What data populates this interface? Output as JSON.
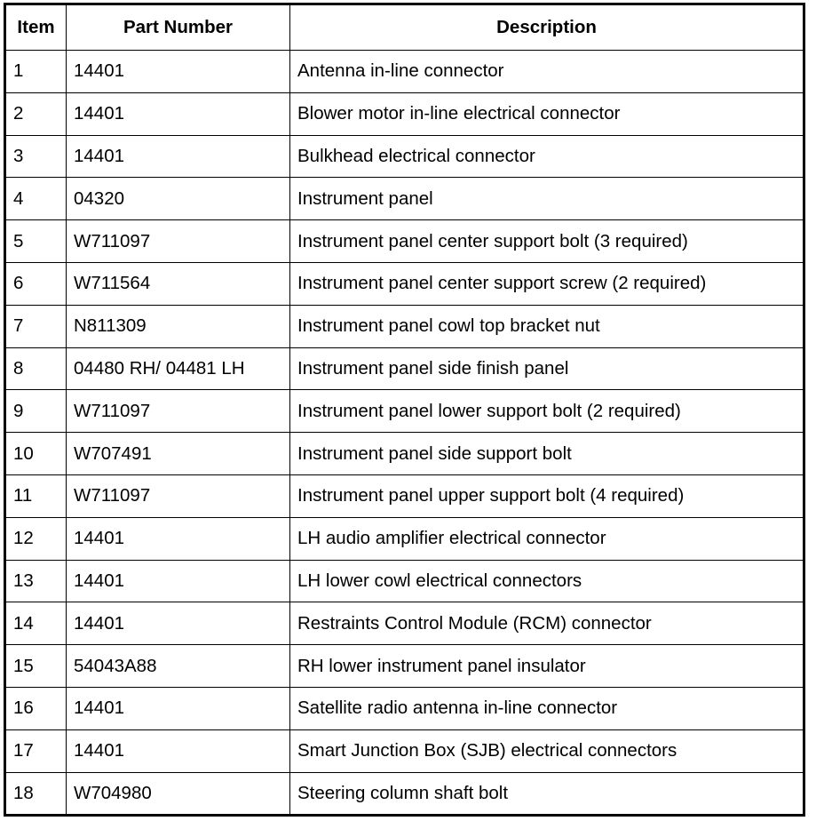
{
  "headers": {
    "item": "Item",
    "part_number": "Part Number",
    "description": "Description"
  },
  "rows": [
    {
      "item": "1",
      "part_number": "14401",
      "description": "Antenna in-line connector"
    },
    {
      "item": "2",
      "part_number": "14401",
      "description": "Blower motor in-line electrical connector"
    },
    {
      "item": "3",
      "part_number": "14401",
      "description": "Bulkhead electrical connector"
    },
    {
      "item": "4",
      "part_number": "04320",
      "description": "Instrument panel"
    },
    {
      "item": "5",
      "part_number": "W711097",
      "description": "Instrument panel center support bolt (3 required)"
    },
    {
      "item": "6",
      "part_number": "W711564",
      "description": "Instrument panel center support screw (2 required)"
    },
    {
      "item": "7",
      "part_number": "N811309",
      "description": "Instrument panel cowl top bracket nut"
    },
    {
      "item": "8",
      "part_number": "04480 RH/ 04481 LH",
      "description": "Instrument panel side finish panel"
    },
    {
      "item": "9",
      "part_number": "W711097",
      "description": "Instrument panel lower support bolt (2 required)"
    },
    {
      "item": "10",
      "part_number": "W707491",
      "description": "Instrument panel side support bolt"
    },
    {
      "item": "11",
      "part_number": "W711097",
      "description": "Instrument panel upper support bolt (4 required)"
    },
    {
      "item": "12",
      "part_number": "14401",
      "description": "LH audio amplifier electrical connector"
    },
    {
      "item": "13",
      "part_number": "14401",
      "description": "LH lower cowl electrical connectors"
    },
    {
      "item": "14",
      "part_number": "14401",
      "description": "Restraints Control Module (RCM) connector"
    },
    {
      "item": "15",
      "part_number": "54043A88",
      "description": "RH lower instrument panel insulator"
    },
    {
      "item": "16",
      "part_number": "14401",
      "description": "Satellite radio antenna in-line connector"
    },
    {
      "item": "17",
      "part_number": "14401",
      "description": "Smart Junction Box (SJB) electrical connectors"
    },
    {
      "item": "18",
      "part_number": "W704980",
      "description": "Steering column shaft bolt"
    }
  ]
}
